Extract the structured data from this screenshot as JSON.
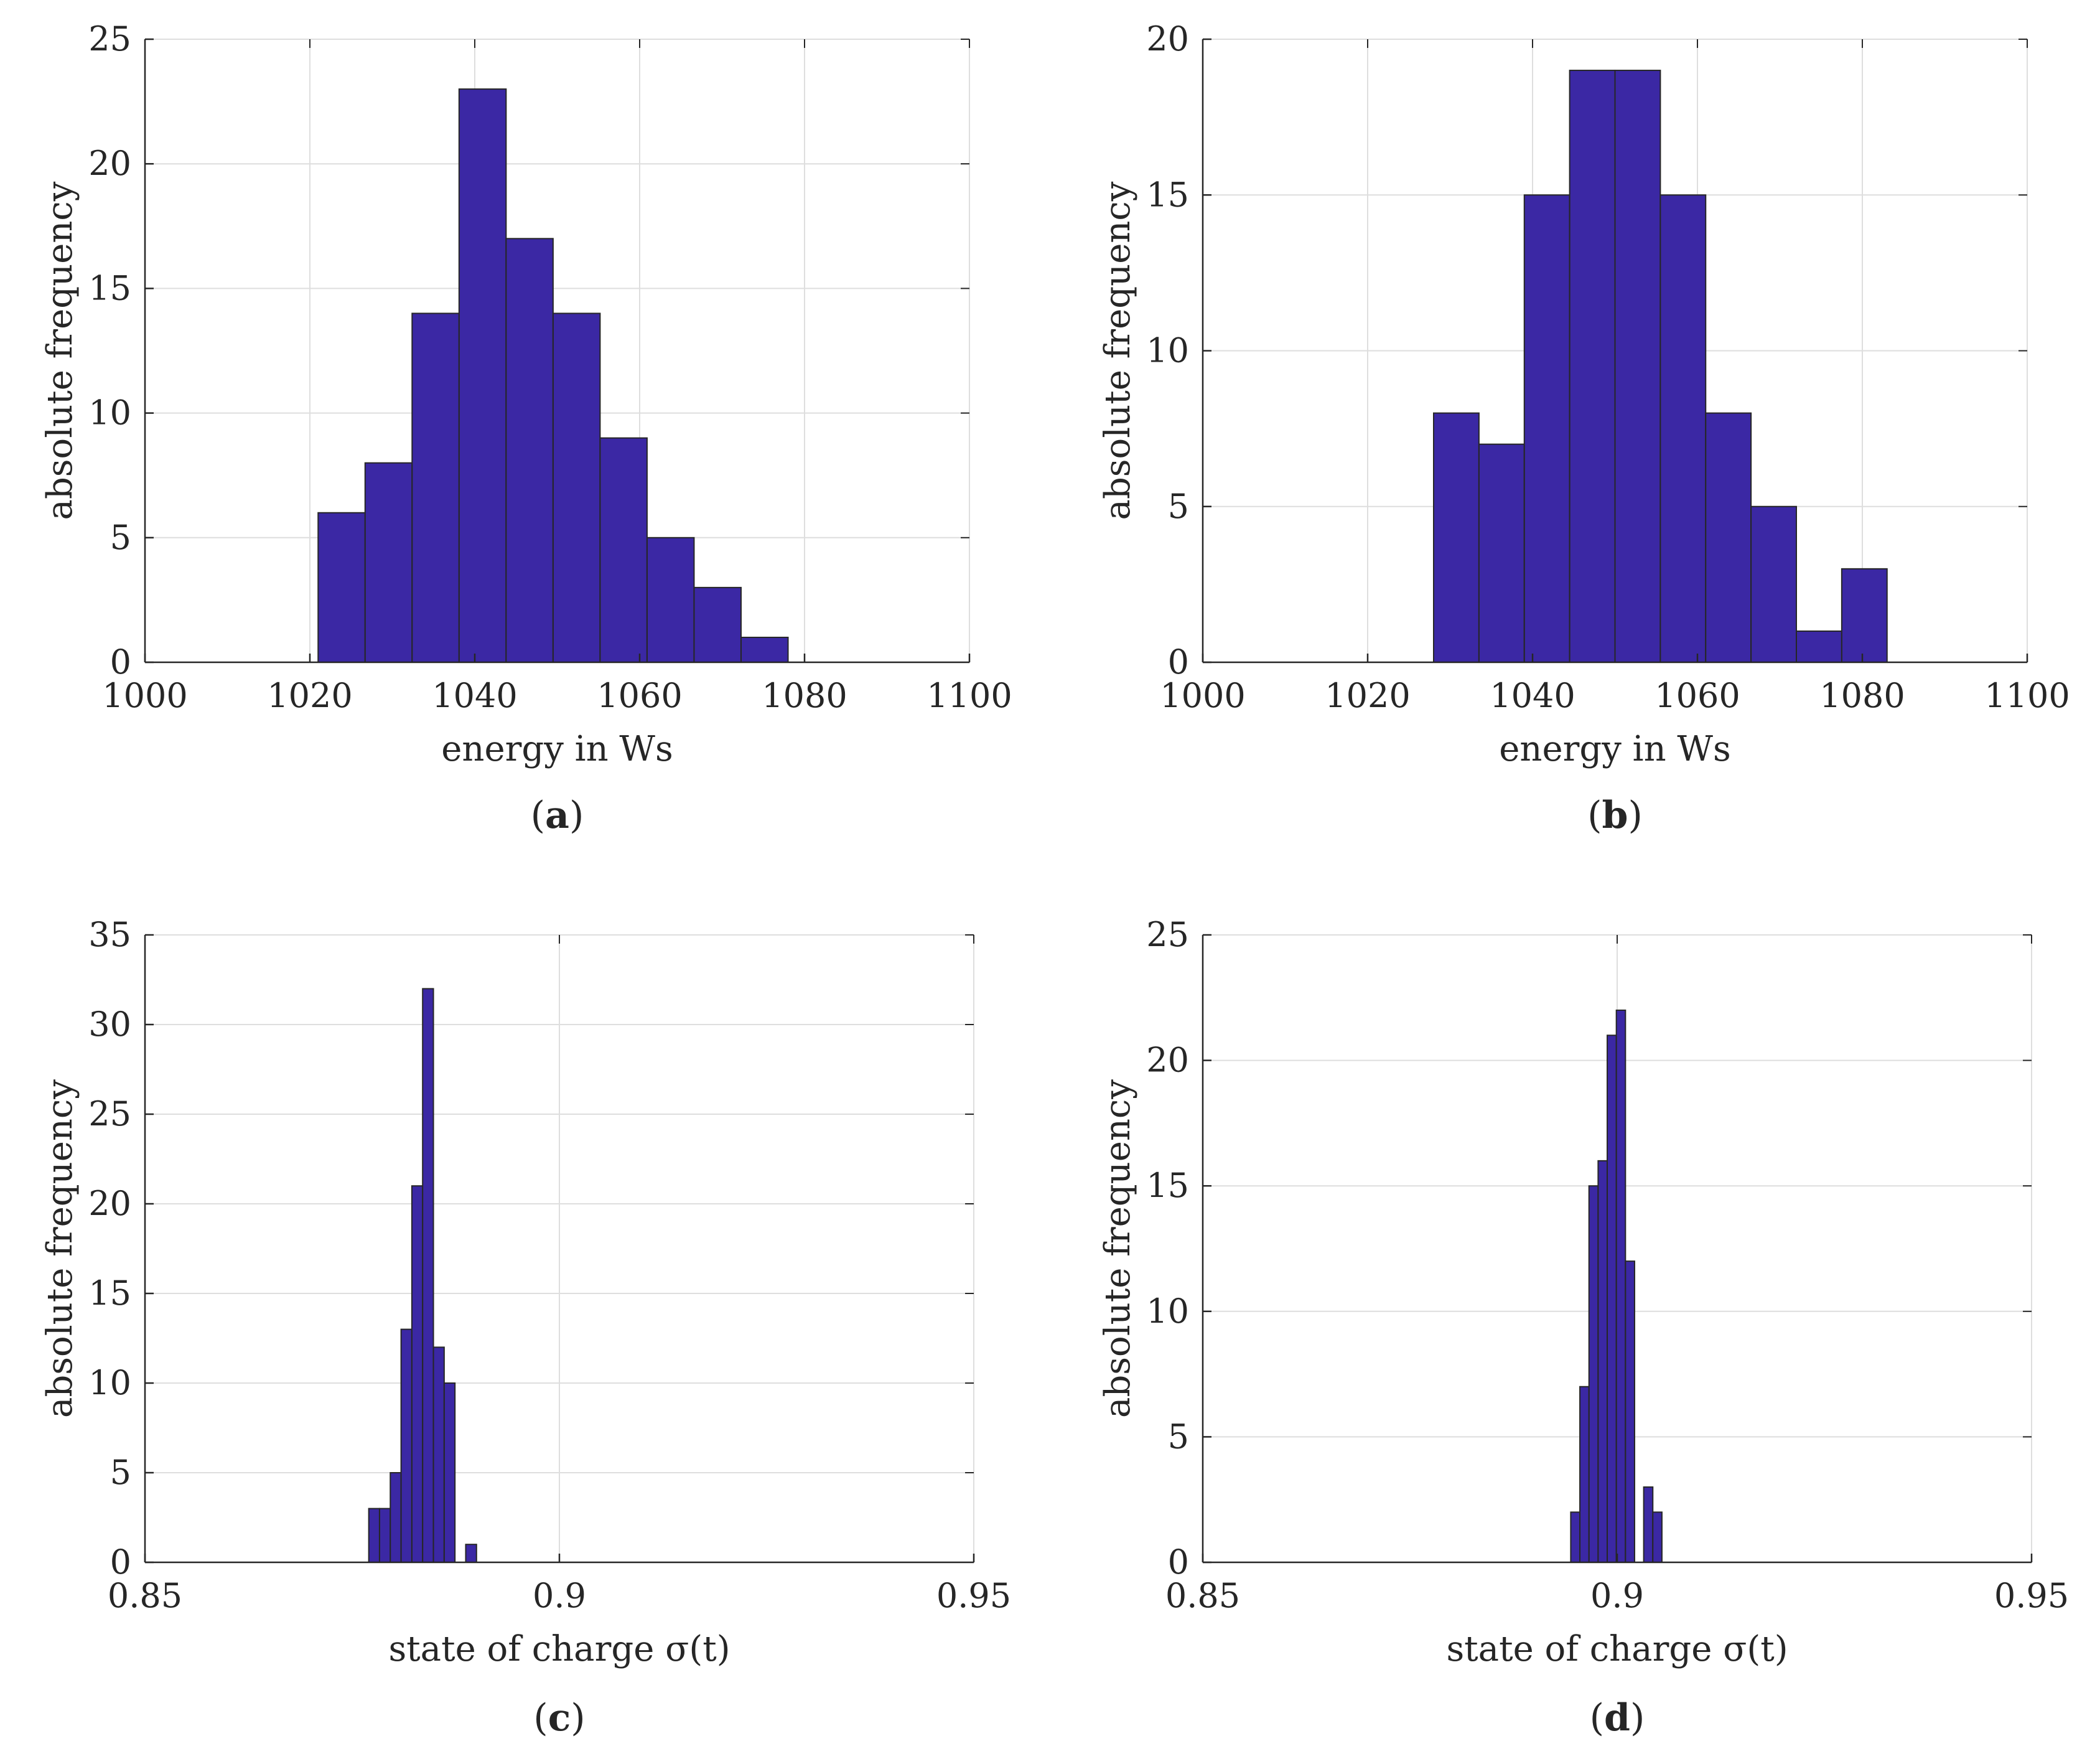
{
  "figure": {
    "bar_color": "#3b28a4",
    "bar_edge_color": "#262626",
    "grid_color": "#dedede",
    "axis_color": "#262626"
  },
  "chart_data": [
    {
      "id": "a",
      "type": "bar",
      "subtype": "histogram",
      "caption": "a",
      "xlabel": "energy in Ws",
      "ylabel": "absolute frequency",
      "xlim": [
        1000,
        1100
      ],
      "ylim": [
        0,
        25
      ],
      "xticks": [
        1000,
        1020,
        1040,
        1060,
        1080,
        1100
      ],
      "yticks": [
        0,
        5,
        10,
        15,
        20,
        25
      ],
      "xtick_labels": [
        "1000",
        "1020",
        "1040",
        "1060",
        "1080",
        "1100"
      ],
      "ytick_labels": [
        "0",
        "5",
        "10",
        "15",
        "20",
        "25"
      ],
      "grid": true,
      "bins": [
        {
          "x0": 1021.0,
          "x1": 1026.7,
          "count": 6
        },
        {
          "x0": 1026.7,
          "x1": 1032.4,
          "count": 8
        },
        {
          "x0": 1032.4,
          "x1": 1038.1,
          "count": 14
        },
        {
          "x0": 1038.1,
          "x1": 1043.8,
          "count": 23
        },
        {
          "x0": 1043.8,
          "x1": 1049.5,
          "count": 17
        },
        {
          "x0": 1049.5,
          "x1": 1055.2,
          "count": 14
        },
        {
          "x0": 1055.2,
          "x1": 1060.9,
          "count": 9
        },
        {
          "x0": 1060.9,
          "x1": 1066.6,
          "count": 5
        },
        {
          "x0": 1066.6,
          "x1": 1072.3,
          "count": 3
        },
        {
          "x0": 1072.3,
          "x1": 1078.0,
          "count": 1
        }
      ]
    },
    {
      "id": "b",
      "type": "bar",
      "subtype": "histogram",
      "caption": "b",
      "xlabel": "energy in Ws",
      "ylabel": "absolute frequency",
      "xlim": [
        1000,
        1100
      ],
      "ylim": [
        0,
        20
      ],
      "xticks": [
        1000,
        1020,
        1040,
        1060,
        1080,
        1100
      ],
      "yticks": [
        0,
        5,
        10,
        15,
        20
      ],
      "xtick_labels": [
        "1000",
        "1020",
        "1040",
        "1060",
        "1080",
        "1100"
      ],
      "ytick_labels": [
        "0",
        "5",
        "10",
        "15",
        "20"
      ],
      "grid": true,
      "bins": [
        {
          "x0": 1028.0,
          "x1": 1033.5,
          "count": 8
        },
        {
          "x0": 1033.5,
          "x1": 1039.0,
          "count": 7
        },
        {
          "x0": 1039.0,
          "x1": 1044.5,
          "count": 15
        },
        {
          "x0": 1044.5,
          "x1": 1050.0,
          "count": 19
        },
        {
          "x0": 1050.0,
          "x1": 1055.5,
          "count": 19
        },
        {
          "x0": 1055.5,
          "x1": 1061.0,
          "count": 15
        },
        {
          "x0": 1061.0,
          "x1": 1066.5,
          "count": 8
        },
        {
          "x0": 1066.5,
          "x1": 1072.0,
          "count": 5
        },
        {
          "x0": 1072.0,
          "x1": 1077.5,
          "count": 1
        },
        {
          "x0": 1077.5,
          "x1": 1083.0,
          "count": 3
        }
      ]
    },
    {
      "id": "c",
      "type": "bar",
      "subtype": "histogram",
      "caption": "c",
      "xlabel": "state of charge σ(t)",
      "ylabel": "absolute frequency",
      "xlim": [
        0.85,
        0.95
      ],
      "ylim": [
        0,
        35
      ],
      "xticks": [
        0.85,
        0.9,
        0.95
      ],
      "yticks": [
        0,
        5,
        10,
        15,
        20,
        25,
        30,
        35
      ],
      "xtick_labels": [
        "0.85",
        "0.9",
        "0.95"
      ],
      "ytick_labels": [
        "0",
        "5",
        "10",
        "15",
        "20",
        "25",
        "30",
        "35"
      ],
      "grid": true,
      "bins": [
        {
          "x0": 0.877,
          "x1": 0.8783,
          "count": 3
        },
        {
          "x0": 0.8783,
          "x1": 0.8796,
          "count": 3
        },
        {
          "x0": 0.8796,
          "x1": 0.8809,
          "count": 5
        },
        {
          "x0": 0.8809,
          "x1": 0.8822,
          "count": 13
        },
        {
          "x0": 0.8822,
          "x1": 0.8835,
          "count": 21
        },
        {
          "x0": 0.8835,
          "x1": 0.8848,
          "count": 32
        },
        {
          "x0": 0.8848,
          "x1": 0.8861,
          "count": 12
        },
        {
          "x0": 0.8861,
          "x1": 0.8874,
          "count": 10
        },
        {
          "x0": 0.8874,
          "x1": 0.8887,
          "count": 0
        },
        {
          "x0": 0.8887,
          "x1": 0.89,
          "count": 1
        }
      ]
    },
    {
      "id": "d",
      "type": "bar",
      "subtype": "histogram",
      "caption": "d",
      "xlabel": "state of charge σ(t)",
      "ylabel": "absolute frequency",
      "xlim": [
        0.85,
        0.95
      ],
      "ylim": [
        0,
        25
      ],
      "xticks": [
        0.85,
        0.9,
        0.95
      ],
      "yticks": [
        0,
        5,
        10,
        15,
        20,
        25
      ],
      "xtick_labels": [
        "0.85",
        "0.9",
        "0.95"
      ],
      "ytick_labels": [
        "0",
        "5",
        "10",
        "15",
        "20",
        "25"
      ],
      "grid": true,
      "bins": [
        {
          "x0": 0.8944,
          "x1": 0.8955,
          "count": 2
        },
        {
          "x0": 0.8955,
          "x1": 0.8966,
          "count": 7
        },
        {
          "x0": 0.8966,
          "x1": 0.8977,
          "count": 15
        },
        {
          "x0": 0.8977,
          "x1": 0.8988,
          "count": 16
        },
        {
          "x0": 0.8988,
          "x1": 0.8999,
          "count": 21
        },
        {
          "x0": 0.8999,
          "x1": 0.901,
          "count": 22
        },
        {
          "x0": 0.901,
          "x1": 0.9021,
          "count": 12
        },
        {
          "x0": 0.9021,
          "x1": 0.9032,
          "count": 0
        },
        {
          "x0": 0.9032,
          "x1": 0.9043,
          "count": 3
        },
        {
          "x0": 0.9043,
          "x1": 0.9054,
          "count": 2
        }
      ]
    }
  ]
}
